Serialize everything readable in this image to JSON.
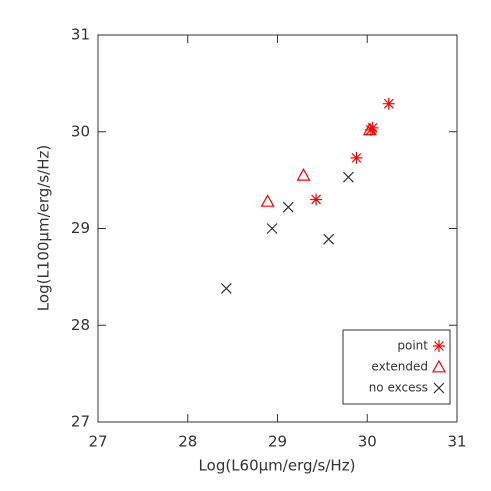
{
  "chart_data": {
    "type": "scatter",
    "x_label": "Log(L60μm/erg/s/Hz)",
    "y_label": "Log(L100μm/erg/s/Hz)",
    "xlim": [
      27,
      31
    ],
    "ylim": [
      27,
      31
    ],
    "xticks": [
      27,
      28,
      29,
      30,
      31
    ],
    "yticks": [
      27,
      28,
      29,
      30,
      31
    ],
    "legend": "lower right",
    "series": [
      {
        "name": "point",
        "color": "#ff0000",
        "marker": "asterisk",
        "x": [
          30.24,
          30.06,
          30.04,
          29.88,
          29.43
        ],
        "values": [
          30.29,
          30.04,
          30.02,
          29.73,
          29.3
        ]
      },
      {
        "name": "extended",
        "color": "#ff0000",
        "marker": "triangle",
        "x": [
          28.89,
          29.29,
          30.03
        ],
        "values": [
          29.28,
          29.55,
          30.02
        ]
      },
      {
        "name": "no excess",
        "color": "#333333",
        "marker": "cross",
        "x": [
          28.43,
          28.94,
          29.12,
          29.57,
          29.79
        ],
        "values": [
          28.38,
          29.0,
          29.22,
          28.89,
          29.53
        ]
      }
    ]
  }
}
